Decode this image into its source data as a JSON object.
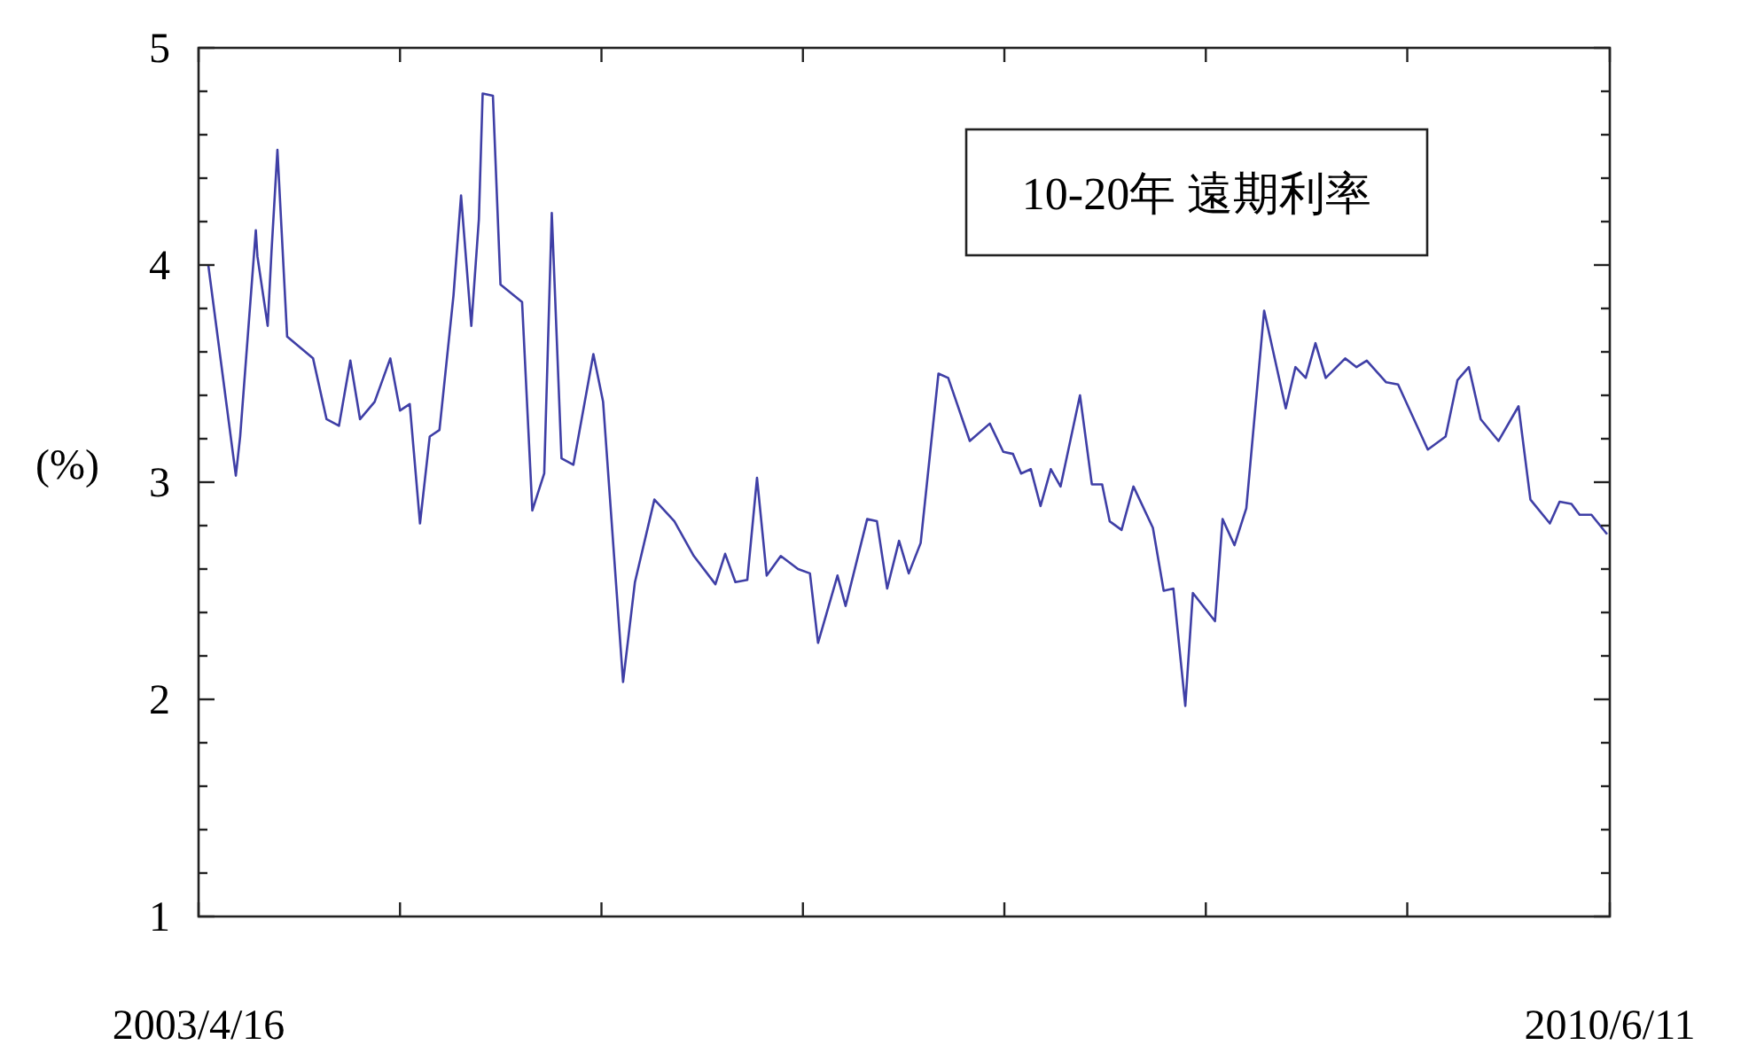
{
  "chart_data": {
    "type": "line",
    "title": "10-20年 遠期利率",
    "ylabel": "(%)",
    "x": [
      "2003-05-04",
      "2003-06-24",
      "2003-07-02",
      "2003-07-31",
      "2003-08-03",
      "2003-08-22",
      "2003-08-29",
      "2003-09-09",
      "2003-09-23",
      "2003-09-27",
      "2003-11-14",
      "2003-12-09",
      "2004-01-01",
      "2004-01-22",
      "2004-02-09",
      "2004-03-07",
      "2004-04-05",
      "2004-04-23",
      "2004-05-11",
      "2004-05-30",
      "2004-06-17",
      "2004-07-05",
      "2004-07-31",
      "2004-08-14",
      "2004-09-02",
      "2004-09-16",
      "2004-09-23",
      "2004-10-12",
      "2004-10-26",
      "2004-12-05",
      "2004-12-24",
      "2005-01-15",
      "2005-01-29",
      "2005-02-16",
      "2005-03-10",
      "2005-04-16",
      "2005-05-04",
      "2005-06-10",
      "2005-07-02",
      "2005-08-07",
      "2005-09-13",
      "2005-10-19",
      "2005-11-28",
      "2005-12-16",
      "2006-01-04",
      "2006-01-26",
      "2006-02-13",
      "2006-03-03",
      "2006-03-29",
      "2006-04-30",
      "2006-05-22",
      "2006-06-06",
      "2006-07-12",
      "2006-07-27",
      "2006-09-05",
      "2006-09-23",
      "2006-10-12",
      "2006-11-03",
      "2006-11-21",
      "2006-12-13",
      "2007-01-15",
      "2007-02-02",
      "2007-03-14",
      "2007-04-20",
      "2007-05-15",
      "2007-06-02",
      "2007-06-17",
      "2007-07-05",
      "2007-07-23",
      "2007-08-11",
      "2007-08-29",
      "2007-10-04",
      "2007-10-26",
      "2007-11-14",
      "2007-11-28",
      "2007-12-20",
      "2008-01-11",
      "2008-02-16",
      "2008-03-07",
      "2008-03-25",
      "2008-04-16",
      "2008-04-30",
      "2008-06-10",
      "2008-06-24",
      "2008-07-16",
      "2008-08-07",
      "2008-09-09",
      "2008-10-19",
      "2008-11-06",
      "2008-11-25",
      "2008-12-13",
      "2009-01-01",
      "2009-02-06",
      "2009-02-27",
      "2009-03-18",
      "2009-04-23",
      "2009-05-15",
      "2009-07-09",
      "2009-08-11",
      "2009-09-02",
      "2009-09-23",
      "2009-10-15",
      "2009-11-17",
      "2009-12-24",
      "2010-01-15",
      "2010-02-20",
      "2010-03-10",
      "2010-04-01",
      "2010-04-16",
      "2010-05-08",
      "2010-06-06"
    ],
    "series": [
      {
        "color": "#3f3fa6",
        "values": [
          4.0,
          3.03,
          3.21,
          4.16,
          4.04,
          3.72,
          4.06,
          4.53,
          3.86,
          3.67,
          3.57,
          3.29,
          3.26,
          3.56,
          3.29,
          3.37,
          3.57,
          3.33,
          3.36,
          2.81,
          3.21,
          3.24,
          3.86,
          4.32,
          3.72,
          4.21,
          4.79,
          4.78,
          3.91,
          3.83,
          2.87,
          3.04,
          4.24,
          3.11,
          3.08,
          3.59,
          3.37,
          2.08,
          2.54,
          2.92,
          2.82,
          2.66,
          2.53,
          2.67,
          2.54,
          2.55,
          3.02,
          2.57,
          2.66,
          2.6,
          2.58,
          2.26,
          2.57,
          2.43,
          2.83,
          2.82,
          2.51,
          2.73,
          2.58,
          2.72,
          3.5,
          3.48,
          3.19,
          3.27,
          3.14,
          3.13,
          3.04,
          3.06,
          2.89,
          3.06,
          2.98,
          3.4,
          2.99,
          2.99,
          2.82,
          2.78,
          2.98,
          2.79,
          2.5,
          2.51,
          1.97,
          2.49,
          2.36,
          2.83,
          2.71,
          2.88,
          3.79,
          3.34,
          3.53,
          3.48,
          3.64,
          3.48,
          3.57,
          3.53,
          3.56,
          3.46,
          3.45,
          3.15,
          3.21,
          3.47,
          3.53,
          3.29,
          3.19,
          3.35,
          2.92,
          2.81,
          2.91,
          2.9,
          2.85,
          2.85,
          2.76
        ]
      }
    ],
    "xlim": [
      "2003-04-16",
      "2010-06-11"
    ],
    "xticks": [
      {
        "value": "2003-04-16",
        "label": "2003/4/16"
      },
      {
        "value": "2004-04-23",
        "label": null
      },
      {
        "value": "2005-05-01",
        "label": null
      },
      {
        "value": "2006-05-09",
        "label": null
      },
      {
        "value": "2007-05-17",
        "label": null
      },
      {
        "value": "2008-05-24",
        "label": null
      },
      {
        "value": "2009-06-01",
        "label": null
      },
      {
        "value": "2010-06-11",
        "label": "2010/6/11"
      }
    ],
    "ylim": [
      1,
      5
    ],
    "yticks": [
      1,
      {
        "value": 1.2,
        "label": null
      },
      {
        "value": 1.4,
        "label": null
      },
      {
        "value": 1.6,
        "label": null
      },
      {
        "value": 1.8,
        "label": null
      },
      2,
      {
        "value": 2.2,
        "label": null
      },
      {
        "value": 2.4,
        "label": null
      },
      {
        "value": 2.6,
        "label": null
      },
      {
        "value": 2.8,
        "label": null
      },
      3,
      {
        "value": 3.2,
        "label": null
      },
      {
        "value": 3.4,
        "label": null
      },
      {
        "value": 3.6,
        "label": null
      },
      {
        "value": 3.8,
        "label": null
      },
      4,
      {
        "value": 4.2,
        "label": null
      },
      {
        "value": 4.4,
        "label": null
      },
      {
        "value": 4.6,
        "label": null
      },
      {
        "value": 4.8,
        "label": null
      },
      5
    ],
    "grid": false
  }
}
